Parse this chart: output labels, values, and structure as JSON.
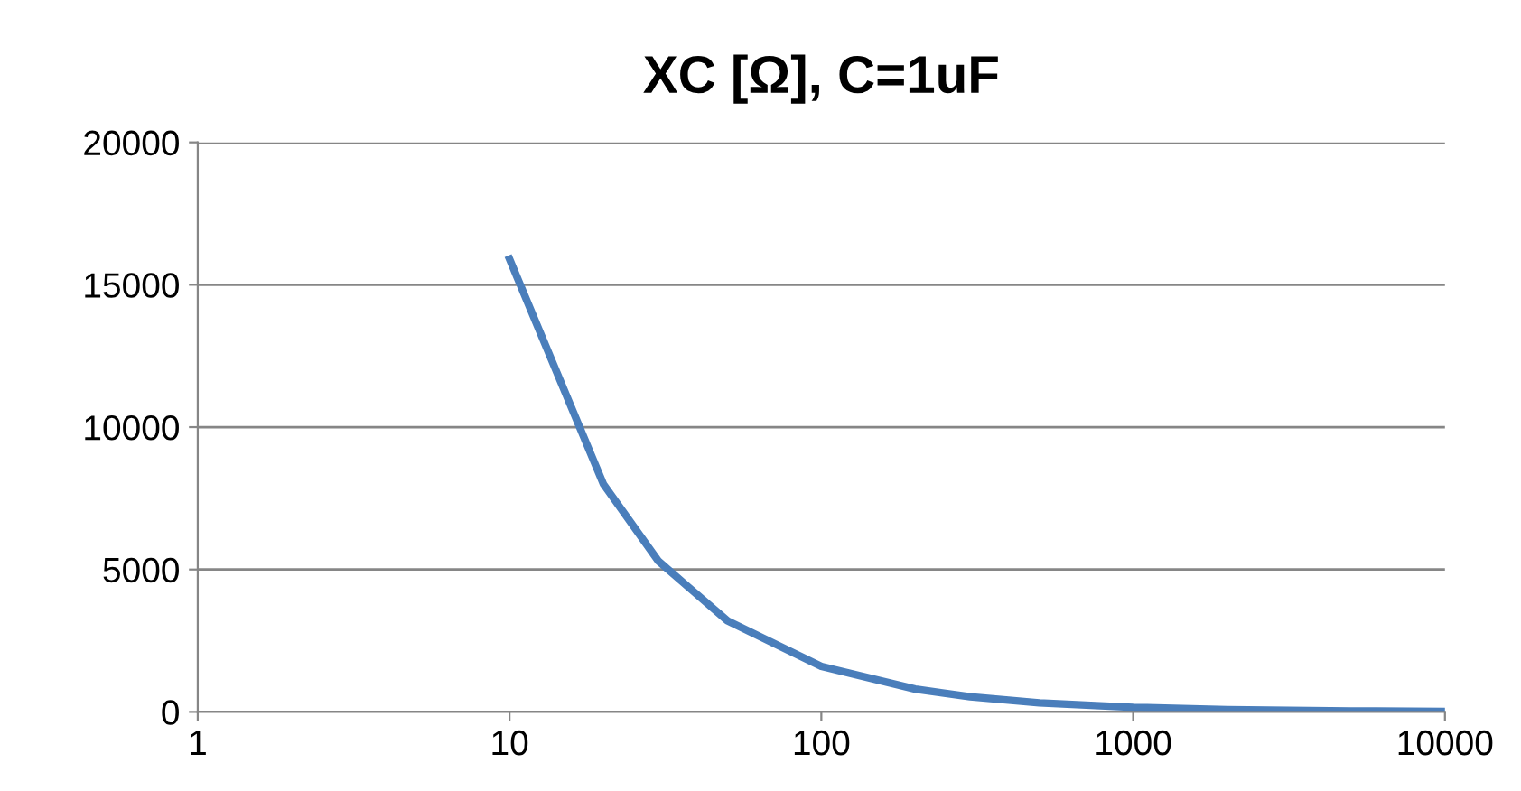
{
  "chart_data": {
    "type": "line",
    "title": "XC [Ω], C=1uF",
    "x": [
      10,
      20,
      30,
      50,
      100,
      200,
      300,
      500,
      1000,
      2000,
      5000,
      10000
    ],
    "series": [
      {
        "color": "#4a7ebb",
        "values": [
          15900,
          8000,
          5300,
          3200,
          1600,
          800,
          530,
          320,
          160,
          80,
          32,
          16
        ]
      }
    ],
    "log": "x",
    "xlim": [
      1,
      10000
    ],
    "xticks": [
      1,
      10,
      100,
      1000,
      10000
    ],
    "ylim": [
      0,
      20000
    ],
    "yticks": [
      0,
      5000,
      10000,
      15000,
      20000
    ],
    "grid": "y",
    "marker": "none",
    "line_style": "solid",
    "legend": false
  }
}
